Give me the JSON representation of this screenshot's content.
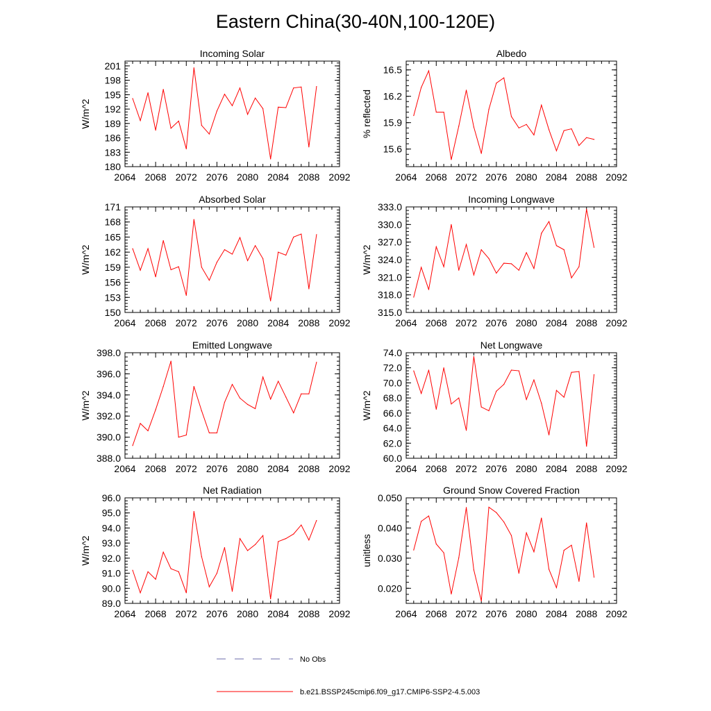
{
  "figure": {
    "title": "Eastern China(30-40N,100-120E)"
  },
  "legend": {
    "obs_label": "No Obs",
    "obs_color": "#6a6aa8",
    "model_label": "b.e21.BSSP245cmip6.f09_g17.CMIP6-SSP2-4.5.003",
    "model_color": "#ff0000"
  },
  "chart_data": [
    {
      "id": "incoming-solar",
      "type": "line",
      "title": "Incoming Solar",
      "ylabel": "W/m^2",
      "xlim": [
        2064,
        2092
      ],
      "xticks": [
        2064,
        2068,
        2072,
        2076,
        2080,
        2084,
        2088,
        2092
      ],
      "ylim": [
        180,
        202
      ],
      "yticks": [
        "180",
        "183",
        "186",
        "189",
        "192",
        "195",
        "198",
        "201"
      ],
      "x": [
        2065,
        2066,
        2067,
        2068,
        2069,
        2070,
        2071,
        2072,
        2073,
        2074,
        2075,
        2076,
        2077,
        2078,
        2079,
        2080,
        2081,
        2082,
        2083,
        2084,
        2085,
        2086,
        2087,
        2088,
        2089
      ],
      "series": [
        {
          "name": "b.e21.BSSP245cmip6.f09_g17.CMIP6-SSP2-4.5.003",
          "values": [
            194.2,
            189.6,
            195.4,
            187.6,
            196.1,
            188.0,
            189.5,
            183.7,
            200.6,
            188.6,
            186.8,
            191.6,
            195.1,
            192.7,
            196.4,
            190.9,
            194.3,
            192.1,
            181.6,
            192.4,
            192.3,
            196.4,
            196.6,
            184.1,
            196.7
          ]
        }
      ]
    },
    {
      "id": "albedo",
      "type": "line",
      "title": "Albedo",
      "ylabel": "% reflected",
      "xlim": [
        2064,
        2092
      ],
      "xticks": [
        2064,
        2068,
        2072,
        2076,
        2080,
        2084,
        2088,
        2092
      ],
      "ylim": [
        15.4,
        16.6
      ],
      "yticks": [
        "15.6",
        "15.9",
        "16.2",
        "16.5"
      ],
      "x": [
        2065,
        2066,
        2067,
        2068,
        2069,
        2070,
        2071,
        2072,
        2073,
        2074,
        2075,
        2076,
        2077,
        2078,
        2079,
        2080,
        2081,
        2082,
        2083,
        2084,
        2085,
        2086,
        2087,
        2088,
        2089
      ],
      "series": [
        {
          "name": "b.e21.BSSP245cmip6.f09_g17.CMIP6-SSP2-4.5.003",
          "values": [
            15.98,
            16.3,
            16.49,
            16.02,
            16.02,
            15.48,
            15.86,
            16.27,
            15.85,
            15.55,
            16.05,
            16.35,
            16.41,
            15.97,
            15.84,
            15.88,
            15.76,
            16.1,
            15.82,
            15.58,
            15.81,
            15.83,
            15.64,
            15.73,
            15.71
          ]
        }
      ]
    },
    {
      "id": "absorbed-solar",
      "type": "line",
      "title": "Absorbed Solar",
      "ylabel": "W/m^2",
      "xlim": [
        2064,
        2092
      ],
      "xticks": [
        2064,
        2068,
        2072,
        2076,
        2080,
        2084,
        2088,
        2092
      ],
      "ylim": [
        150,
        171
      ],
      "yticks": [
        "150",
        "153",
        "156",
        "159",
        "162",
        "165",
        "168",
        "171"
      ],
      "x": [
        2065,
        2066,
        2067,
        2068,
        2069,
        2070,
        2071,
        2072,
        2073,
        2074,
        2075,
        2076,
        2077,
        2078,
        2079,
        2080,
        2081,
        2082,
        2083,
        2084,
        2085,
        2086,
        2087,
        2088,
        2089
      ],
      "series": [
        {
          "name": "b.e21.BSSP245cmip6.f09_g17.CMIP6-SSP2-4.5.003",
          "values": [
            162.7,
            158.4,
            162.7,
            157.1,
            164.3,
            158.5,
            159.1,
            153.4,
            168.5,
            159.0,
            156.4,
            160.0,
            162.5,
            161.6,
            164.9,
            160.3,
            163.3,
            160.7,
            152.3,
            162.0,
            161.4,
            165.0,
            165.6,
            154.7,
            165.5
          ]
        }
      ]
    },
    {
      "id": "incoming-longwave",
      "type": "line",
      "title": "Incoming Longwave",
      "ylabel": "W/m^2",
      "xlim": [
        2064,
        2092
      ],
      "xticks": [
        2064,
        2068,
        2072,
        2076,
        2080,
        2084,
        2088,
        2092
      ],
      "ylim": [
        315,
        333
      ],
      "yticks": [
        "315.0",
        "318.0",
        "321.0",
        "324.0",
        "327.0",
        "330.0",
        "333.0"
      ],
      "x": [
        2065,
        2066,
        2067,
        2068,
        2069,
        2070,
        2071,
        2072,
        2073,
        2074,
        2075,
        2076,
        2077,
        2078,
        2079,
        2080,
        2081,
        2082,
        2083,
        2084,
        2085,
        2086,
        2087,
        2088,
        2089
      ],
      "series": [
        {
          "name": "b.e21.BSSP245cmip6.f09_g17.CMIP6-SSP2-4.5.003",
          "values": [
            317.6,
            322.7,
            318.9,
            326.2,
            322.8,
            330.0,
            322.2,
            326.6,
            321.4,
            325.7,
            324.2,
            321.7,
            323.4,
            323.3,
            322.2,
            325.2,
            322.5,
            328.5,
            330.5,
            326.4,
            325.7,
            320.9,
            322.8,
            332.6,
            326.1
          ]
        }
      ]
    },
    {
      "id": "emitted-longwave",
      "type": "line",
      "title": "Emitted Longwave",
      "ylabel": "W/m^2",
      "xlim": [
        2064,
        2092
      ],
      "xticks": [
        2064,
        2068,
        2072,
        2076,
        2080,
        2084,
        2088,
        2092
      ],
      "ylim": [
        388,
        398
      ],
      "yticks": [
        "388.0",
        "390.0",
        "392.0",
        "394.0",
        "396.0",
        "398.0"
      ],
      "x": [
        2065,
        2066,
        2067,
        2068,
        2069,
        2070,
        2071,
        2072,
        2073,
        2074,
        2075,
        2076,
        2077,
        2078,
        2079,
        2080,
        2081,
        2082,
        2083,
        2084,
        2085,
        2086,
        2087,
        2088,
        2089
      ],
      "series": [
        {
          "name": "b.e21.BSSP245cmip6.f09_g17.CMIP6-SSP2-4.5.003",
          "values": [
            389.2,
            391.3,
            390.6,
            392.6,
            394.8,
            397.2,
            390.0,
            390.2,
            394.8,
            392.5,
            390.4,
            390.4,
            393.3,
            395.0,
            393.7,
            393.1,
            392.7,
            395.7,
            393.6,
            395.3,
            393.8,
            392.3,
            394.1,
            394.1,
            397.1
          ]
        }
      ]
    },
    {
      "id": "net-longwave",
      "type": "line",
      "title": "Net Longwave",
      "ylabel": "W/m^2",
      "xlim": [
        2064,
        2092
      ],
      "xticks": [
        2064,
        2068,
        2072,
        2076,
        2080,
        2084,
        2088,
        2092
      ],
      "ylim": [
        60,
        74
      ],
      "yticks": [
        "60.0",
        "62.0",
        "64.0",
        "66.0",
        "68.0",
        "70.0",
        "72.0",
        "74.0"
      ],
      "x": [
        2065,
        2066,
        2067,
        2068,
        2069,
        2070,
        2071,
        2072,
        2073,
        2074,
        2075,
        2076,
        2077,
        2078,
        2079,
        2080,
        2081,
        2082,
        2083,
        2084,
        2085,
        2086,
        2087,
        2088,
        2089
      ],
      "series": [
        {
          "name": "b.e21.BSSP245cmip6.f09_g17.CMIP6-SSP2-4.5.003",
          "values": [
            71.6,
            68.6,
            71.7,
            66.5,
            72.0,
            67.2,
            68.0,
            63.7,
            73.5,
            66.8,
            66.3,
            68.9,
            69.8,
            71.7,
            71.6,
            67.8,
            70.4,
            67.3,
            63.1,
            69.0,
            68.1,
            71.4,
            71.5,
            61.6,
            71.1
          ]
        }
      ]
    },
    {
      "id": "net-radiation",
      "type": "line",
      "title": "Net Radiation",
      "ylabel": "W/m^2",
      "xlim": [
        2064,
        2092
      ],
      "xticks": [
        2064,
        2068,
        2072,
        2076,
        2080,
        2084,
        2088,
        2092
      ],
      "ylim": [
        89,
        96
      ],
      "yticks": [
        "89.0",
        "90.0",
        "91.0",
        "92.0",
        "93.0",
        "94.0",
        "95.0",
        "96.0"
      ],
      "x": [
        2065,
        2066,
        2067,
        2068,
        2069,
        2070,
        2071,
        2072,
        2073,
        2074,
        2075,
        2076,
        2077,
        2078,
        2079,
        2080,
        2081,
        2082,
        2083,
        2084,
        2085,
        2086,
        2087,
        2088,
        2089
      ],
      "series": [
        {
          "name": "b.e21.BSSP245cmip6.f09_g17.CMIP6-SSP2-4.5.003",
          "values": [
            91.2,
            89.7,
            91.1,
            90.6,
            92.4,
            91.3,
            91.1,
            89.7,
            95.1,
            92.1,
            90.1,
            91.0,
            92.7,
            89.8,
            93.3,
            92.5,
            92.9,
            93.5,
            89.3,
            93.1,
            93.3,
            93.6,
            94.2,
            93.2,
            94.5
          ]
        }
      ]
    },
    {
      "id": "ground-snow",
      "type": "line",
      "title": "Ground Snow Covered Fraction",
      "ylabel": "unitless",
      "xlim": [
        2064,
        2092
      ],
      "xticks": [
        2064,
        2068,
        2072,
        2076,
        2080,
        2084,
        2088,
        2092
      ],
      "ylim": [
        0.015,
        0.05
      ],
      "yticks": [
        "0.020",
        "0.030",
        "0.040",
        "0.050"
      ],
      "x": [
        2065,
        2066,
        2067,
        2068,
        2069,
        2070,
        2071,
        2072,
        2073,
        2074,
        2075,
        2076,
        2077,
        2078,
        2079,
        2080,
        2081,
        2082,
        2083,
        2084,
        2085,
        2086,
        2087,
        2088,
        2089
      ],
      "series": [
        {
          "name": "b.e21.BSSP245cmip6.f09_g17.CMIP6-SSP2-4.5.003",
          "values": [
            0.0327,
            0.0422,
            0.044,
            0.0347,
            0.0318,
            0.0181,
            0.0301,
            0.0468,
            0.0261,
            0.0158,
            0.0469,
            0.0451,
            0.042,
            0.0375,
            0.025,
            0.0384,
            0.0321,
            0.0433,
            0.0263,
            0.0202,
            0.0326,
            0.0343,
            0.0223,
            0.0417,
            0.0237
          ]
        }
      ]
    }
  ]
}
